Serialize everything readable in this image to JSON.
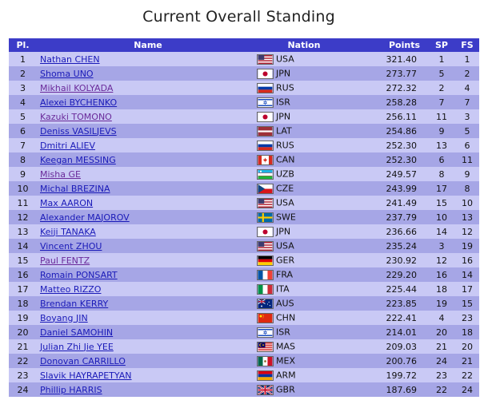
{
  "page_title": "Current Overall Standing",
  "table": {
    "headers": {
      "pl": "Pl.",
      "name": "Name",
      "nation": "Nation",
      "points": "Points",
      "sp": "SP",
      "fs": "FS"
    },
    "rows": [
      {
        "pl": "1",
        "name": "Nathan CHEN",
        "nation": "USA",
        "points": "321.40",
        "sp": "1",
        "fs": "1"
      },
      {
        "pl": "2",
        "name": "Shoma UNO",
        "nation": "JPN",
        "points": "273.77",
        "sp": "5",
        "fs": "2"
      },
      {
        "pl": "3",
        "name": "Mikhail KOLYADA",
        "nation": "RUS",
        "points": "272.32",
        "sp": "2",
        "fs": "4"
      },
      {
        "pl": "4",
        "name": "Alexei BYCHENKO",
        "nation": "ISR",
        "points": "258.28",
        "sp": "7",
        "fs": "7"
      },
      {
        "pl": "5",
        "name": "Kazuki TOMONO",
        "nation": "JPN",
        "points": "256.11",
        "sp": "11",
        "fs": "3"
      },
      {
        "pl": "6",
        "name": "Deniss VASILJEVS",
        "nation": "LAT",
        "points": "254.86",
        "sp": "9",
        "fs": "5"
      },
      {
        "pl": "7",
        "name": "Dmitri ALIEV",
        "nation": "RUS",
        "points": "252.30",
        "sp": "13",
        "fs": "6"
      },
      {
        "pl": "8",
        "name": "Keegan MESSING",
        "nation": "CAN",
        "points": "252.30",
        "sp": "6",
        "fs": "11"
      },
      {
        "pl": "9",
        "name": "Misha GE",
        "nation": "UZB",
        "points": "249.57",
        "sp": "8",
        "fs": "9"
      },
      {
        "pl": "10",
        "name": "Michal BREZINA",
        "nation": "CZE",
        "points": "243.99",
        "sp": "17",
        "fs": "8"
      },
      {
        "pl": "11",
        "name": "Max AARON",
        "nation": "USA",
        "points": "241.49",
        "sp": "15",
        "fs": "10"
      },
      {
        "pl": "12",
        "name": "Alexander MAJOROV",
        "nation": "SWE",
        "points": "237.79",
        "sp": "10",
        "fs": "13"
      },
      {
        "pl": "13",
        "name": "Keiji TANAKA",
        "nation": "JPN",
        "points": "236.66",
        "sp": "14",
        "fs": "12"
      },
      {
        "pl": "14",
        "name": "Vincent ZHOU",
        "nation": "USA",
        "points": "235.24",
        "sp": "3",
        "fs": "19"
      },
      {
        "pl": "15",
        "name": "Paul FENTZ",
        "nation": "GER",
        "points": "230.92",
        "sp": "12",
        "fs": "16"
      },
      {
        "pl": "16",
        "name": "Romain PONSART",
        "nation": "FRA",
        "points": "229.20",
        "sp": "16",
        "fs": "14"
      },
      {
        "pl": "17",
        "name": "Matteo RIZZO",
        "nation": "ITA",
        "points": "225.44",
        "sp": "18",
        "fs": "17"
      },
      {
        "pl": "18",
        "name": "Brendan KERRY",
        "nation": "AUS",
        "points": "223.85",
        "sp": "19",
        "fs": "15"
      },
      {
        "pl": "19",
        "name": "Boyang JIN",
        "nation": "CHN",
        "points": "222.41",
        "sp": "4",
        "fs": "23"
      },
      {
        "pl": "20",
        "name": "Daniel SAMOHIN",
        "nation": "ISR",
        "points": "214.01",
        "sp": "20",
        "fs": "18"
      },
      {
        "pl": "21",
        "name": "Julian Zhi Jie YEE",
        "nation": "MAS",
        "points": "209.03",
        "sp": "21",
        "fs": "20"
      },
      {
        "pl": "22",
        "name": "Donovan CARRILLO",
        "nation": "MEX",
        "points": "200.76",
        "sp": "24",
        "fs": "21"
      },
      {
        "pl": "23",
        "name": "Slavik HAYRAPETYAN",
        "nation": "ARM",
        "points": "199.72",
        "sp": "23",
        "fs": "22"
      },
      {
        "pl": "24",
        "name": "Phillip HARRIS",
        "nation": "GBR",
        "points": "187.69",
        "sp": "22",
        "fs": "24"
      }
    ]
  },
  "colors": {
    "header_bg": "#3c3cc8",
    "row_light": "#c9c9f5",
    "row_dark": "#a6a6e6",
    "link": "#1a1ab8",
    "link_visited": "#6a2a9a"
  }
}
